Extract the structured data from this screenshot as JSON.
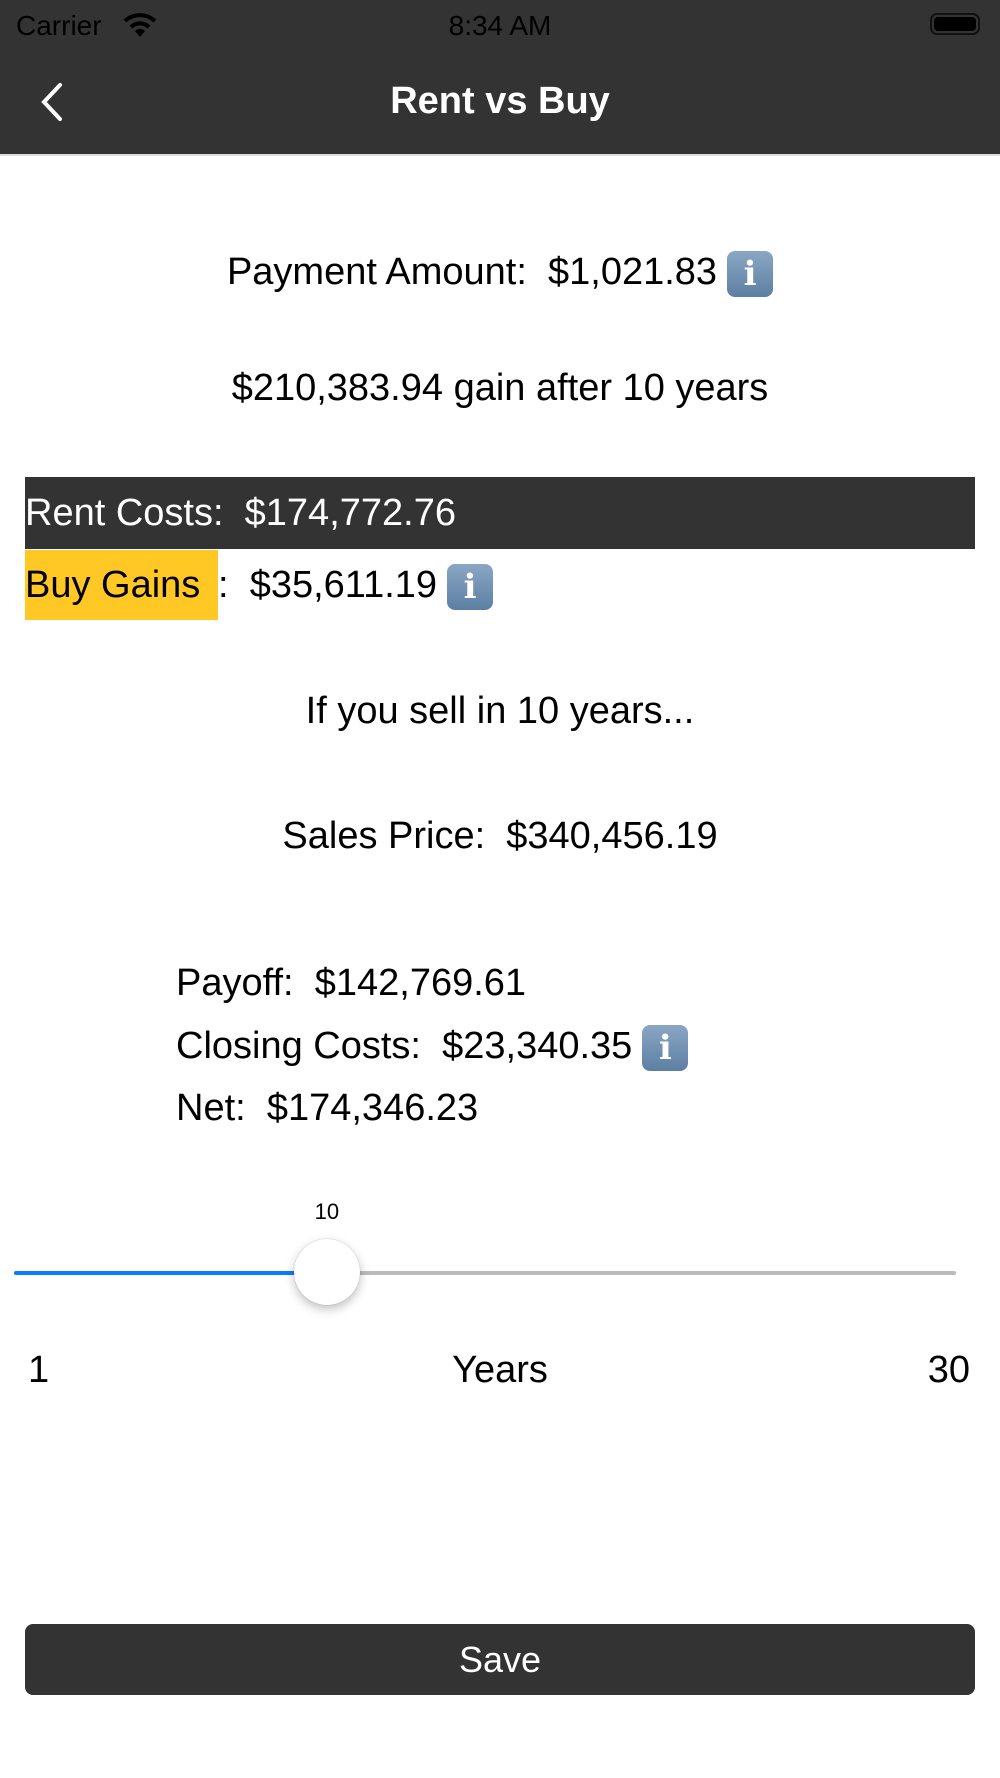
{
  "status_bar": {
    "carrier": "Carrier",
    "time": "8:34 AM"
  },
  "nav": {
    "title": "Rent vs Buy"
  },
  "payment": {
    "label": "Payment Amount:",
    "value": "$1,021.83"
  },
  "gain_summary": "$210,383.94 gain after 10 years",
  "rent_costs": {
    "label": "Rent Costs:",
    "value": "$174,772.76"
  },
  "buy_gains": {
    "label": "Buy Gains",
    "colon": ":",
    "value": "$35,611.19"
  },
  "sell_heading": "If you sell in 10 years...",
  "sales_price": {
    "label": "Sales Price:",
    "value": "$340,456.19"
  },
  "payoff": {
    "label": "Payoff:",
    "value": "$142,769.61"
  },
  "closing_costs": {
    "label": "Closing Costs:",
    "value": "$23,340.35"
  },
  "net": {
    "label": "Net:",
    "value": "$174,346.23"
  },
  "slider": {
    "value": 10,
    "value_label": "10",
    "min": 1,
    "max": 30,
    "min_label": "1",
    "max_label": "30",
    "title": "Years"
  },
  "save_label": "Save",
  "icons": {
    "info": "info-icon",
    "back": "chevron-left-icon",
    "wifi": "wifi-icon",
    "battery": "battery-icon"
  },
  "colors": {
    "bar": "#333333",
    "highlight": "#FFC825",
    "slider_fill": "#0A7AFF",
    "slider_track": "#BBBBBB"
  }
}
